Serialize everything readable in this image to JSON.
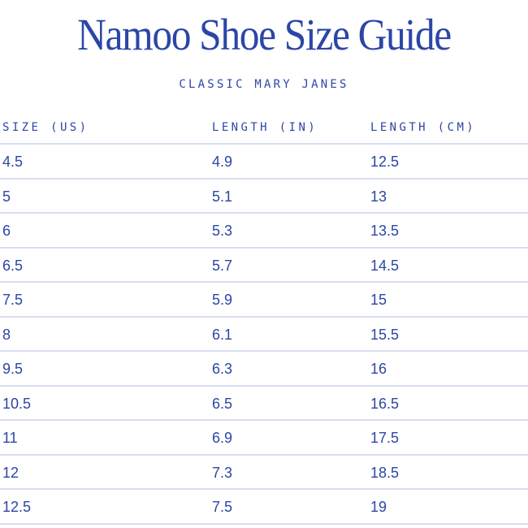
{
  "title": "Namoo Shoe Size Guide",
  "subtitle": "CLASSIC MARY JANES",
  "colors": {
    "text": "#2c46a6",
    "divider": "#d8def1",
    "background": "#ffffff"
  },
  "table": {
    "headers": [
      "SIZE (US)",
      "LENGTH (IN)",
      "LENGTH (CM)"
    ],
    "rows": [
      [
        "4.5",
        "4.9",
        "12.5"
      ],
      [
        "5",
        "5.1",
        "13"
      ],
      [
        "6",
        "5.3",
        "13.5"
      ],
      [
        "6.5",
        "5.7",
        "14.5"
      ],
      [
        "7.5",
        "5.9",
        "15"
      ],
      [
        "8",
        "6.1",
        "15.5"
      ],
      [
        "9.5",
        "6.3",
        "16"
      ],
      [
        "10.5",
        "6.5",
        "16.5"
      ],
      [
        "11",
        "6.9",
        "17.5"
      ],
      [
        "12",
        "7.3",
        "18.5"
      ],
      [
        "12.5",
        "7.5",
        "19"
      ]
    ]
  }
}
